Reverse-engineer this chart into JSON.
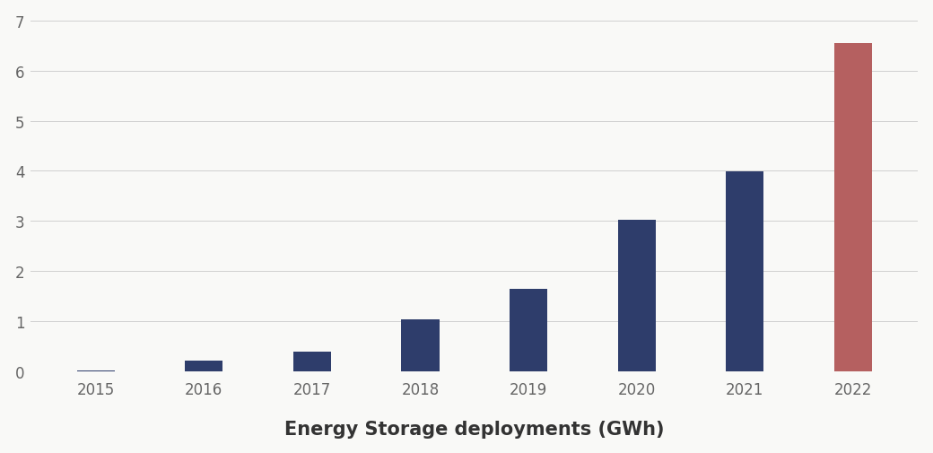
{
  "categories": [
    "2015",
    "2016",
    "2017",
    "2018",
    "2019",
    "2020",
    "2021",
    "2022"
  ],
  "values": [
    0.03,
    0.21,
    0.39,
    1.04,
    1.65,
    3.02,
    3.99,
    6.55
  ],
  "bar_colors": [
    "#2e3d6b",
    "#2e3d6b",
    "#2e3d6b",
    "#2e3d6b",
    "#2e3d6b",
    "#2e3d6b",
    "#2e3d6b",
    "#b56060"
  ],
  "xlabel": "Energy Storage deployments (GWh)",
  "ylim": [
    0,
    7
  ],
  "yticks": [
    0,
    1,
    2,
    3,
    4,
    5,
    6,
    7
  ],
  "background_color": "#f9f9f7",
  "grid_color": "#d0d0d0",
  "xlabel_fontsize": 15,
  "tick_fontsize": 12,
  "bar_width": 0.35
}
